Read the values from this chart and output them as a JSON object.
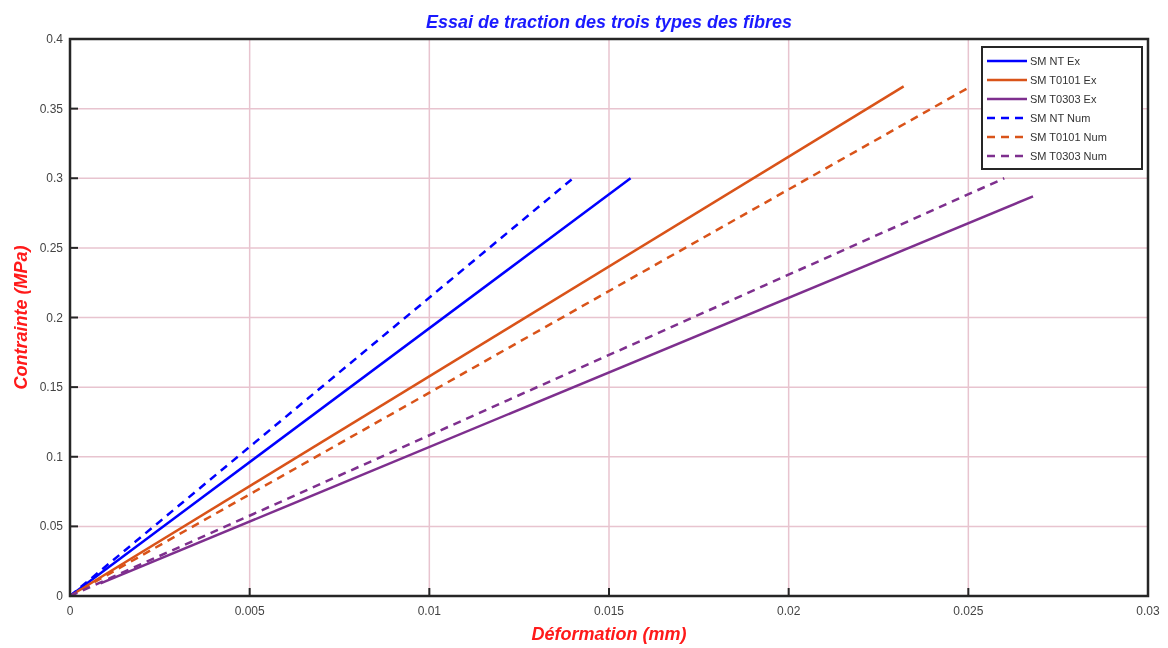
{
  "chart_data": {
    "type": "line",
    "title": "Essai de traction des trois types des fibres",
    "xlabel": "Déformation (mm)",
    "ylabel": "Contrainte (MPa)",
    "xlim": [
      0,
      0.03
    ],
    "xticks": [
      0,
      0.005,
      0.01,
      0.015,
      0.02,
      0.025,
      0.03
    ],
    "ylim": [
      0,
      0.4
    ],
    "yticks": [
      0,
      0.05,
      0.1,
      0.15,
      0.2,
      0.25,
      0.3,
      0.35,
      0.4
    ],
    "grid": true,
    "legend": "top right",
    "series": [
      {
        "name": "SM NT Ex",
        "color": "#0000ff",
        "line_style": "solid",
        "x": [
          0,
          0.0156
        ],
        "values": [
          0,
          0.3
        ]
      },
      {
        "name": "SM T0101 Ex",
        "color": "#d95319",
        "line_style": "solid",
        "x": [
          0,
          0.0232
        ],
        "values": [
          0,
          0.366
        ]
      },
      {
        "name": "SM T0303 Ex",
        "color": "#7e2f8e",
        "line_style": "solid",
        "x": [
          0.00085,
          0.0268
        ],
        "values": [
          0.009,
          0.287
        ]
      },
      {
        "name": "SM NT Num",
        "color": "#0000ff",
        "line_style": "dashed",
        "x": [
          0,
          0.014
        ],
        "values": [
          0,
          0.3
        ]
      },
      {
        "name": "SM T0101 Num",
        "color": "#d95319",
        "line_style": "dashed",
        "x": [
          0,
          0.025
        ],
        "values": [
          0,
          0.365
        ]
      },
      {
        "name": "SM T0303 Num",
        "color": "#7e2f8e",
        "line_style": "dashed",
        "x": [
          0,
          0.026
        ],
        "values": [
          0,
          0.3
        ]
      }
    ]
  }
}
